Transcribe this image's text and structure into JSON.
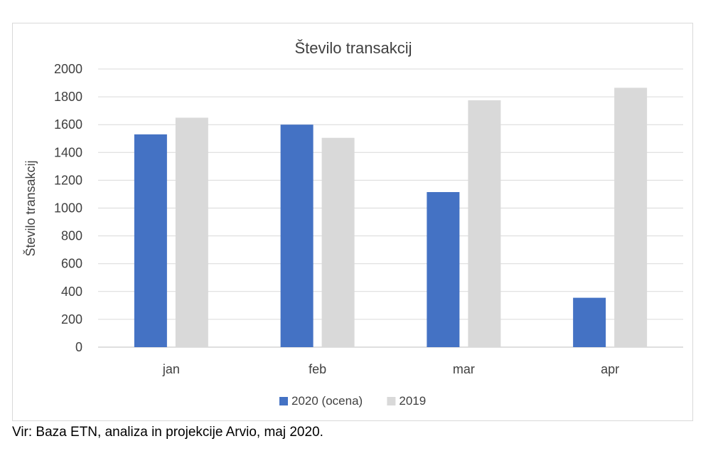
{
  "chart_data": {
    "type": "bar",
    "title": "Število transakcij",
    "ylabel": "Število transakcij",
    "xlabel": "",
    "categories": [
      "jan",
      "feb",
      "mar",
      "apr"
    ],
    "series": [
      {
        "name": "2020 (ocena)",
        "color": "#4472c4",
        "values": [
          1530,
          1600,
          1115,
          355
        ]
      },
      {
        "name": "2019",
        "color": "#d9d9d9",
        "values": [
          1650,
          1505,
          1775,
          1865
        ]
      }
    ],
    "ylim": [
      0,
      2000
    ],
    "yticks": [
      "0",
      "200",
      "400",
      "600",
      "800",
      "1000",
      "1200",
      "1400",
      "1600",
      "1800",
      "2000"
    ],
    "grid": true,
    "legend": "bottom"
  },
  "source_note": "Vir: Baza ETN, analiza in projekcije Arvio, maj 2020."
}
